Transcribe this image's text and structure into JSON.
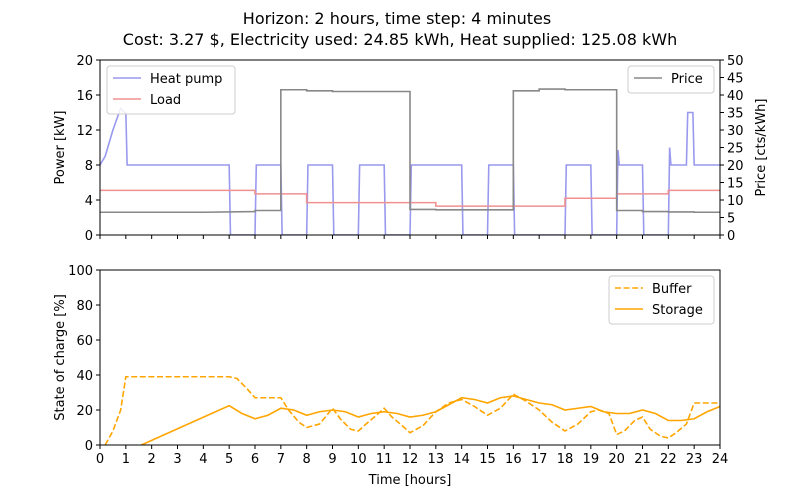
{
  "title_line1": "Horizon: 2 hours, time step: 4 minutes",
  "title_line2": "Cost: 3.27 $, Electricity used: 24.85 kWh, Heat supplied: 125.08 kWh",
  "chart_data": [
    {
      "type": "line",
      "xlabel": "",
      "ylabel": "Power [kW]",
      "y2label": "Price [cts/kWh]",
      "xlim": [
        0,
        24
      ],
      "ylim": [
        0,
        20
      ],
      "y2lim": [
        0,
        50
      ],
      "xticks": [
        0,
        1,
        2,
        3,
        4,
        5,
        6,
        7,
        8,
        9,
        10,
        11,
        12,
        13,
        14,
        15,
        16,
        17,
        18,
        19,
        20,
        21,
        22,
        23,
        24
      ],
      "yticks": [
        0,
        4,
        8,
        12,
        16,
        20
      ],
      "y2ticks": [
        0,
        5,
        10,
        15,
        20,
        25,
        30,
        35,
        40,
        45,
        50
      ],
      "legend_left": "top-left",
      "legend_right": "top-right",
      "series": [
        {
          "name": "Heat pump",
          "axis": "left",
          "color": "#9999ee",
          "dash": "solid",
          "x": [
            0,
            0.2,
            0.5,
            0.8,
            0.95,
            1.0,
            1.05,
            5.0,
            5.05,
            6.0,
            6.05,
            7.0,
            7.05,
            8.0,
            8.05,
            9.0,
            9.05,
            10.0,
            10.05,
            11.0,
            11.05,
            12.0,
            12.05,
            14.0,
            14.05,
            15.0,
            15.05,
            16.0,
            16.05,
            18.0,
            18.05,
            19.0,
            19.05,
            20.0,
            20.05,
            20.1,
            21.0,
            21.05,
            22.0,
            22.05,
            22.1,
            22.15,
            22.7,
            22.75,
            22.8,
            22.95,
            23.0,
            24.0
          ],
          "y": [
            8,
            9,
            12,
            14.5,
            14,
            14,
            8,
            8,
            0,
            0,
            8,
            8,
            0,
            0,
            8,
            8,
            0,
            0,
            8,
            8,
            0,
            0,
            8,
            8,
            0,
            0,
            8,
            8,
            0,
            0,
            8,
            8,
            0,
            0,
            9.7,
            8,
            8,
            0,
            0,
            10,
            8,
            8,
            8,
            14,
            14,
            14,
            8,
            8
          ]
        },
        {
          "name": "Load",
          "axis": "left",
          "color": "#f09090",
          "dash": "solid",
          "x": [
            0,
            6,
            6,
            8,
            8,
            12,
            12,
            13,
            13,
            16,
            16,
            18,
            18,
            20,
            20,
            22,
            22,
            24
          ],
          "y": [
            5.1,
            5.1,
            4.7,
            4.7,
            3.7,
            3.7,
            3.7,
            3.7,
            3.3,
            3.3,
            3.3,
            3.3,
            4.2,
            4.2,
            4.7,
            4.7,
            5.1,
            5.1
          ]
        },
        {
          "name": "Price",
          "axis": "right",
          "color": "#888888",
          "dash": "solid",
          "x": [
            0,
            4,
            6,
            6,
            7,
            7,
            8,
            8,
            9,
            9,
            12,
            12,
            13,
            13,
            16,
            16,
            17,
            17,
            18,
            18,
            20,
            20,
            21,
            21,
            22,
            22,
            23,
            23,
            24
          ],
          "y": [
            6.5,
            6.5,
            6.7,
            7.0,
            7.0,
            41.5,
            41.5,
            41.2,
            41.2,
            41.0,
            41.0,
            7.3,
            7.3,
            7.2,
            7.2,
            41.2,
            41.2,
            41.7,
            41.7,
            41.5,
            41.5,
            7.0,
            7.0,
            6.7,
            6.7,
            6.6,
            6.6,
            6.5,
            6.5
          ]
        }
      ]
    },
    {
      "type": "line",
      "xlabel": "Time [hours]",
      "ylabel": "State of charge [%]",
      "xlim": [
        0,
        24
      ],
      "ylim": [
        0,
        100
      ],
      "xticks": [
        0,
        1,
        2,
        3,
        4,
        5,
        6,
        7,
        8,
        9,
        10,
        11,
        12,
        13,
        14,
        15,
        16,
        17,
        18,
        19,
        20,
        21,
        22,
        23,
        24
      ],
      "yticks": [
        0,
        20,
        40,
        60,
        80,
        100
      ],
      "legend": "top-right",
      "series": [
        {
          "name": "Buffer",
          "color": "#ffa500",
          "dash": "dashed",
          "x": [
            0.2,
            0.5,
            0.8,
            1.0,
            5.0,
            5.3,
            5.7,
            6.0,
            7.0,
            7.3,
            7.7,
            8.0,
            8.5,
            9.0,
            9.3,
            9.7,
            10.0,
            10.3,
            10.7,
            11.0,
            11.3,
            11.7,
            12.0,
            12.5,
            13.0,
            13.5,
            14.0,
            14.5,
            15.0,
            15.5,
            16.0,
            16.5,
            17.0,
            17.5,
            18.0,
            18.5,
            19.0,
            19.3,
            19.7,
            20.0,
            20.3,
            20.7,
            21.0,
            21.3,
            21.7,
            22.0,
            22.3,
            22.7,
            23.0,
            23.5,
            24.0
          ],
          "y": [
            0,
            8,
            20,
            39,
            39,
            38,
            32,
            27,
            27,
            20,
            13,
            10,
            12,
            21,
            15,
            9,
            8,
            12,
            17,
            21,
            16,
            11,
            7,
            11,
            19,
            24,
            26,
            22,
            17,
            21,
            29,
            25,
            20,
            13,
            8,
            12,
            19,
            20,
            18,
            6,
            8,
            14,
            16,
            9,
            5,
            4,
            7,
            12,
            24,
            24,
            24
          ]
        },
        {
          "name": "Storage",
          "color": "#ffa500",
          "dash": "solid",
          "x": [
            1.6,
            5.0,
            5.5,
            6.0,
            6.5,
            7.0,
            7.5,
            8.0,
            8.5,
            9.0,
            9.5,
            10.0,
            10.5,
            11.0,
            11.5,
            12.0,
            12.5,
            13.0,
            13.5,
            14.0,
            14.5,
            15.0,
            15.5,
            16.0,
            16.5,
            17.0,
            17.5,
            18.0,
            18.5,
            19.0,
            19.5,
            20.0,
            20.5,
            21.0,
            21.5,
            22.0,
            22.5,
            23.0,
            23.5,
            24.0
          ],
          "y": [
            0,
            22.5,
            18,
            15,
            17,
            21,
            20,
            17,
            19,
            20,
            19,
            16,
            18,
            19,
            18,
            16,
            17,
            19,
            23,
            27,
            26,
            24,
            27,
            28,
            26,
            24,
            23,
            20,
            21,
            22,
            19,
            18,
            18,
            20,
            18,
            14,
            14,
            15,
            19,
            22
          ]
        }
      ]
    }
  ]
}
